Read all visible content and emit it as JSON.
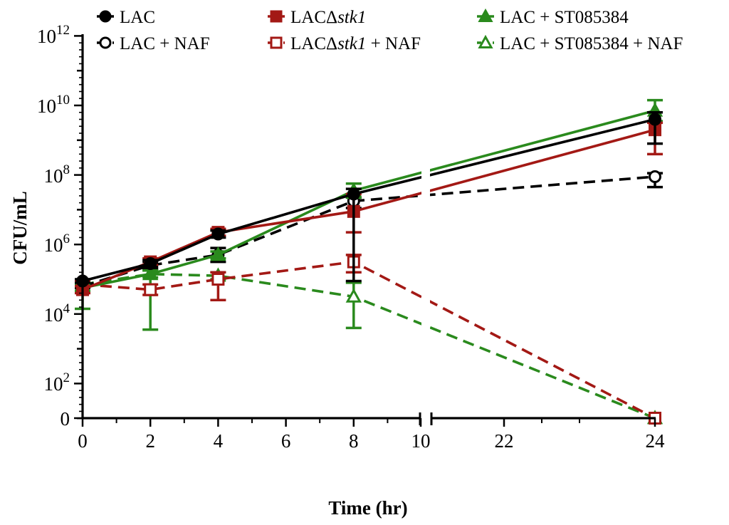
{
  "chart_data": {
    "type": "line",
    "xlabel": "Time (hr)",
    "ylabel": "CFU/mL",
    "y_scale": "log10 with zero at bottom",
    "x_ticks": [
      "0",
      "2",
      "4",
      "6",
      "8",
      "10",
      "22",
      "24"
    ],
    "y_ticks": [
      {
        "base": "0",
        "exp": ""
      },
      {
        "base": "10",
        "exp": "2"
      },
      {
        "base": "10",
        "exp": "4"
      },
      {
        "base": "10",
        "exp": "6"
      },
      {
        "base": "10",
        "exp": "8"
      },
      {
        "base": "10",
        "exp": "10"
      },
      {
        "base": "10",
        "exp": "12"
      }
    ],
    "x_break": [
      10,
      22
    ],
    "series": [
      {
        "name": "LAC",
        "name_parts": [
          "LAC"
        ],
        "color": "#000000",
        "dashed": false,
        "marker": "circle",
        "filled": true,
        "x": [
          0,
          2,
          4,
          8,
          24
        ],
        "y": [
          4.95,
          5.45,
          6.3,
          7.45,
          9.6
        ],
        "err_hi": [
          0.05,
          0.1,
          0.1,
          0.15,
          0.2
        ],
        "err_lo": [
          0.05,
          0.1,
          0.1,
          2.5,
          0.7
        ]
      },
      {
        "name": "LAC + NAF",
        "name_parts": [
          "LAC + NAF"
        ],
        "color": "#000000",
        "dashed": true,
        "marker": "circle",
        "filled": false,
        "x": [
          0,
          2,
          4,
          8,
          24
        ],
        "y": [
          4.8,
          5.4,
          5.7,
          7.25,
          7.95
        ],
        "err_hi": [
          0.05,
          0.1,
          0.2,
          0.1,
          0.1
        ],
        "err_lo": [
          0.05,
          0.1,
          0.2,
          0.2,
          0.3
        ]
      },
      {
        "name": "LACΔstk1",
        "name_parts": [
          "LACΔ",
          "stk1"
        ],
        "color": "#a31915",
        "dashed": false,
        "marker": "square",
        "filled": true,
        "x": [
          0,
          2,
          4,
          8,
          24
        ],
        "y": [
          4.7,
          5.5,
          6.35,
          6.95,
          9.3
        ],
        "err_hi": [
          0.1,
          0.1,
          0.1,
          0.5,
          0.2
        ],
        "err_lo": [
          0.1,
          0.1,
          0.1,
          0.6,
          0.7
        ]
      },
      {
        "name": "LACΔstk1 + NAF",
        "name_parts": [
          "LACΔ",
          "stk1",
          " + NAF"
        ],
        "color": "#a31915",
        "dashed": true,
        "marker": "square",
        "filled": false,
        "x": [
          0,
          2,
          4,
          8,
          24
        ],
        "y": [
          4.85,
          4.7,
          5.0,
          5.5,
          0
        ],
        "err_hi": [
          0.1,
          0.15,
          0.2,
          0.2,
          0
        ],
        "err_lo": [
          0.1,
          0.15,
          0.6,
          0.3,
          0
        ]
      },
      {
        "name": "LAC + ST085384",
        "name_parts": [
          "LAC + ST085384"
        ],
        "color": "#2a8a1d",
        "dashed": false,
        "marker": "triangle",
        "filled": true,
        "x": [
          0,
          2,
          4,
          8,
          24
        ],
        "y": [
          4.75,
          5.15,
          5.7,
          7.55,
          9.85
        ],
        "err_hi": [
          0.1,
          0.1,
          0.1,
          0.2,
          0.3
        ],
        "err_lo": [
          0.1,
          0.1,
          0.1,
          0.2,
          0.3
        ]
      },
      {
        "name": "LAC + ST085384 + NAF",
        "name_parts": [
          "LAC + ST085384 + NAF"
        ],
        "color": "#2a8a1d",
        "dashed": true,
        "marker": "triangle",
        "filled": false,
        "x": [
          0,
          2,
          4,
          8,
          24
        ],
        "y": [
          4.85,
          5.15,
          5.1,
          4.5,
          0
        ],
        "err_hi": [
          0.1,
          0.1,
          0.1,
          0.4,
          0
        ],
        "err_lo": [
          0.7,
          1.6,
          0.1,
          0.9,
          0
        ]
      }
    ]
  }
}
